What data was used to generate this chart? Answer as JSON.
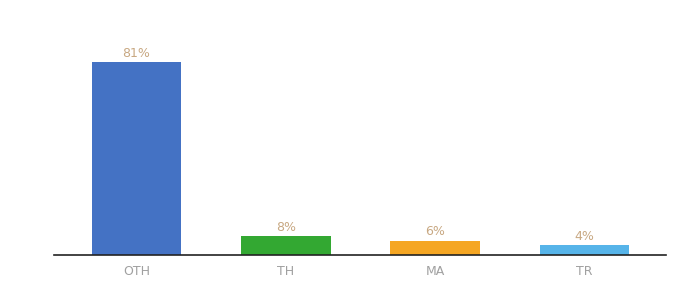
{
  "categories": [
    "OTH",
    "TH",
    "MA",
    "TR"
  ],
  "values": [
    81,
    8,
    6,
    4
  ],
  "bar_colors": [
    "#4472c4",
    "#33a832",
    "#f5a623",
    "#56b4e9"
  ],
  "label_texts": [
    "81%",
    "8%",
    "6%",
    "4%"
  ],
  "ylim": [
    0,
    92
  ],
  "background_color": "#ffffff",
  "label_color": "#c8a882",
  "tick_color": "#a0a0a0",
  "bar_width": 0.6,
  "x_positions": [
    0,
    1,
    2,
    3
  ]
}
